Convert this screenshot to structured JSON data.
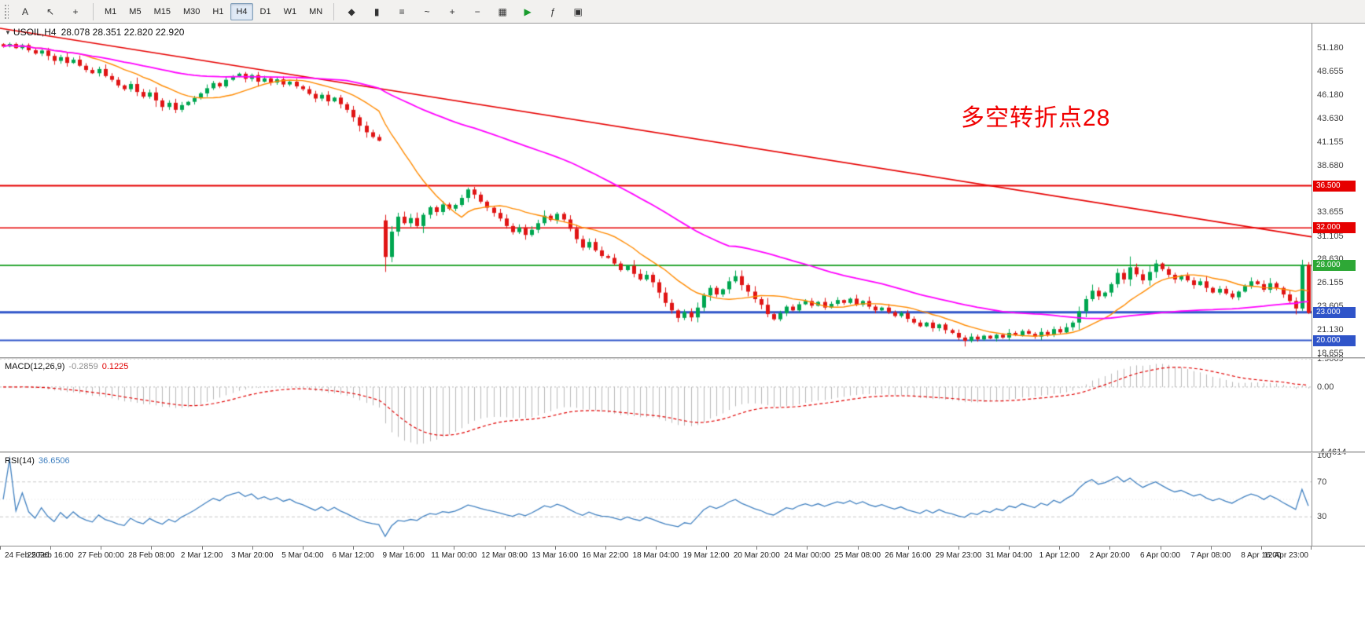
{
  "icons": {
    "dropdown": "▼"
  },
  "toolbar": {
    "left_icons": [
      {
        "name": "text-tool-icon",
        "glyph": "A"
      },
      {
        "name": "cursor-icon",
        "glyph": "↖"
      },
      {
        "name": "crosshair-icon",
        "glyph": "+"
      }
    ],
    "timeframes": [
      {
        "label": "M1",
        "active": false
      },
      {
        "label": "M5",
        "active": false
      },
      {
        "label": "M15",
        "active": false
      },
      {
        "label": "M30",
        "active": false
      },
      {
        "label": "H1",
        "active": false
      },
      {
        "label": "H4",
        "active": true
      },
      {
        "label": "D1",
        "active": false
      },
      {
        "label": "W1",
        "active": false
      },
      {
        "label": "MN",
        "active": false
      }
    ],
    "right_icons": [
      {
        "name": "new-order-icon",
        "glyph": "◆"
      },
      {
        "name": "candle-chart-icon",
        "glyph": "▮"
      },
      {
        "name": "bar-chart-icon",
        "glyph": "≡"
      },
      {
        "name": "line-chart-icon",
        "glyph": "~"
      },
      {
        "name": "zoom-in-icon",
        "glyph": "+"
      },
      {
        "name": "zoom-out-icon",
        "glyph": "−"
      },
      {
        "name": "tile-windows-icon",
        "glyph": "▦"
      },
      {
        "name": "auto-trading-icon",
        "glyph": "▶",
        "color": "#1a9c2e"
      },
      {
        "name": "indicators-icon",
        "glyph": "ƒ"
      },
      {
        "name": "templates-icon",
        "glyph": "▣"
      }
    ]
  },
  "chart": {
    "title": "USOIL,H4",
    "ohlc": "28.078 28.351 22.820 22.920",
    "annotation": {
      "text": "多空转折点28",
      "color": "#f00000"
    },
    "ylim": [
      18.2,
      53.8
    ],
    "colors": {
      "up": "#00a650",
      "down": "#e01515",
      "ma_fast": "#ff8a00",
      "ma_slow": "#ff00ff"
    },
    "price_ticks": [
      "51.180",
      "48.655",
      "46.180",
      "43.630",
      "41.155",
      "38.680",
      "33.655",
      "31.105",
      "28.630",
      "26.155",
      "23.605",
      "21.130",
      "18.655"
    ],
    "hlines": [
      {
        "price": 36.5,
        "label": "36.500",
        "color": "#e60000",
        "width": 2
      },
      {
        "price": 32.0,
        "label": "32.000",
        "color": "#e60000",
        "width": 1.5
      },
      {
        "price": 28.0,
        "label": "28.000",
        "color": "#2ea836",
        "width": 2
      },
      {
        "price": 23.0,
        "label": "23.000",
        "color": "#2f54c9",
        "width": 3
      },
      {
        "price": 20.0,
        "label": "20.000",
        "color": "#2f54c9",
        "width": 2
      }
    ],
    "trendline": {
      "price_left": 53.3,
      "price_right": 31.05,
      "color": "#e60000",
      "width": 1.6
    }
  },
  "macd": {
    "label": "MACD(12,26,9)",
    "value": "-0.2859",
    "signal_value": "0.1225",
    "fast": 12,
    "slow": 26,
    "signal": 9,
    "ticks": [
      "1.9069",
      "0.00",
      "-4.4614"
    ],
    "hist_color": "#b8b8b8",
    "signal_color": "#e00000"
  },
  "rsi": {
    "label": "RSI(14)",
    "value": "36.6506",
    "period": 14,
    "ticks": [
      "100",
      "70",
      "30"
    ],
    "levels": [
      70,
      30
    ],
    "color": "#4080c0"
  },
  "time_axis": {
    "labels": [
      "24 Feb 2020",
      "25 Feb 16:00",
      "27 Feb 00:00",
      "28 Feb 08:00",
      "2 Mar 12:00",
      "3 Mar 20:00",
      "5 Mar 04:00",
      "6 Mar 12:00",
      "9 Mar 16:00",
      "11 Mar 00:00",
      "12 Mar 08:00",
      "13 Mar 16:00",
      "16 Mar 22:00",
      "18 Mar 04:00",
      "19 Mar 12:00",
      "20 Mar 20:00",
      "24 Mar 00:00",
      "25 Mar 08:00",
      "26 Mar 16:00",
      "29 Mar 23:00",
      "31 Mar 04:00",
      "1 Apr 12:00",
      "2 Apr 20:00",
      "6 Apr 00:00",
      "7 Apr 08:00",
      "8 Apr 16:00",
      "12 Apr 23:00"
    ]
  },
  "chart_data": {
    "type": "candlestick",
    "symbol": "USOIL",
    "timeframe": "H4",
    "last_candle": {
      "open": 28.078,
      "high": 28.351,
      "low": 22.82,
      "close": 22.92
    },
    "ma_fast_period": 13,
    "ma_slow_period": 55,
    "closes": [
      51.35,
      51.62,
      51.18,
      51.5,
      50.95,
      50.6,
      50.92,
      50.35,
      49.82,
      50.22,
      49.6,
      49.95,
      49.3,
      48.85,
      48.5,
      48.95,
      48.2,
      47.8,
      47.2,
      46.8,
      47.35,
      46.5,
      46.0,
      46.45,
      45.6,
      44.9,
      45.35,
      44.6,
      45.1,
      45.45,
      45.85,
      46.35,
      46.9,
      47.45,
      47.1,
      47.8,
      48.15,
      48.45,
      47.9,
      48.3,
      47.6,
      47.95,
      47.5,
      47.85,
      47.3,
      47.6,
      47.1,
      46.8,
      46.3,
      45.8,
      46.2,
      45.5,
      45.9,
      45.2,
      44.6,
      43.8,
      42.9,
      42.2,
      41.7,
      41.3,
      28.9,
      31.6,
      33.2,
      32.5,
      33.05,
      32.2,
      33.4,
      34.2,
      33.7,
      34.5,
      34.05,
      34.45,
      35.2,
      36.1,
      35.55,
      34.8,
      34.15,
      33.6,
      33.0,
      32.2,
      31.55,
      32.05,
      31.25,
      31.8,
      32.5,
      33.3,
      32.85,
      33.5,
      32.9,
      31.9,
      30.8,
      29.9,
      30.5,
      29.6,
      29.0,
      28.8,
      28.2,
      27.5,
      27.95,
      27.1,
      26.5,
      27.0,
      26.2,
      25.1,
      24.0,
      23.2,
      22.4,
      23.0,
      22.45,
      23.5,
      24.8,
      25.6,
      24.9,
      25.45,
      26.3,
      26.85,
      25.9,
      25.2,
      24.4,
      23.8,
      22.8,
      22.25,
      22.9,
      23.6,
      23.2,
      23.85,
      24.2,
      23.7,
      24.1,
      23.5,
      23.9,
      24.3,
      24.0,
      24.45,
      23.8,
      24.2,
      23.6,
      23.2,
      23.5,
      23.0,
      22.6,
      22.9,
      22.3,
      21.9,
      21.5,
      21.9,
      21.3,
      21.7,
      21.1,
      20.8,
      20.3,
      19.95,
      20.4,
      20.1,
      20.5,
      20.2,
      20.6,
      20.3,
      20.8,
      20.55,
      21.0,
      20.7,
      20.4,
      20.9,
      20.6,
      21.2,
      20.85,
      21.4,
      21.9,
      23.1,
      24.4,
      25.3,
      24.7,
      25.1,
      26.0,
      27.2,
      26.5,
      27.8,
      27.05,
      26.4,
      27.3,
      28.2,
      27.6,
      27.0,
      26.5,
      26.9,
      26.4,
      25.9,
      26.3,
      25.6,
      25.1,
      25.5,
      25.0,
      24.6,
      25.2,
      25.8,
      26.3,
      26.0,
      25.4,
      26.1,
      25.6,
      24.9,
      24.2,
      23.4,
      28.078,
      22.92
    ],
    "open_overrides": {
      "60": 32.8
    },
    "wick_overrides": {
      "27": {
        "l": 44.25
      },
      "60": {
        "h": 33.4,
        "l": 27.3
      },
      "73": {
        "h": 36.3
      },
      "106": {
        "l": 21.95
      },
      "115": {
        "h": 27.45
      },
      "151": {
        "l": 19.35
      },
      "177": {
        "h": 28.95
      },
      "181": {
        "h": 28.6
      },
      "204": {
        "h": 28.6,
        "l": 23.15
      },
      "205": {
        "h": 28.351,
        "l": 22.82
      }
    }
  }
}
